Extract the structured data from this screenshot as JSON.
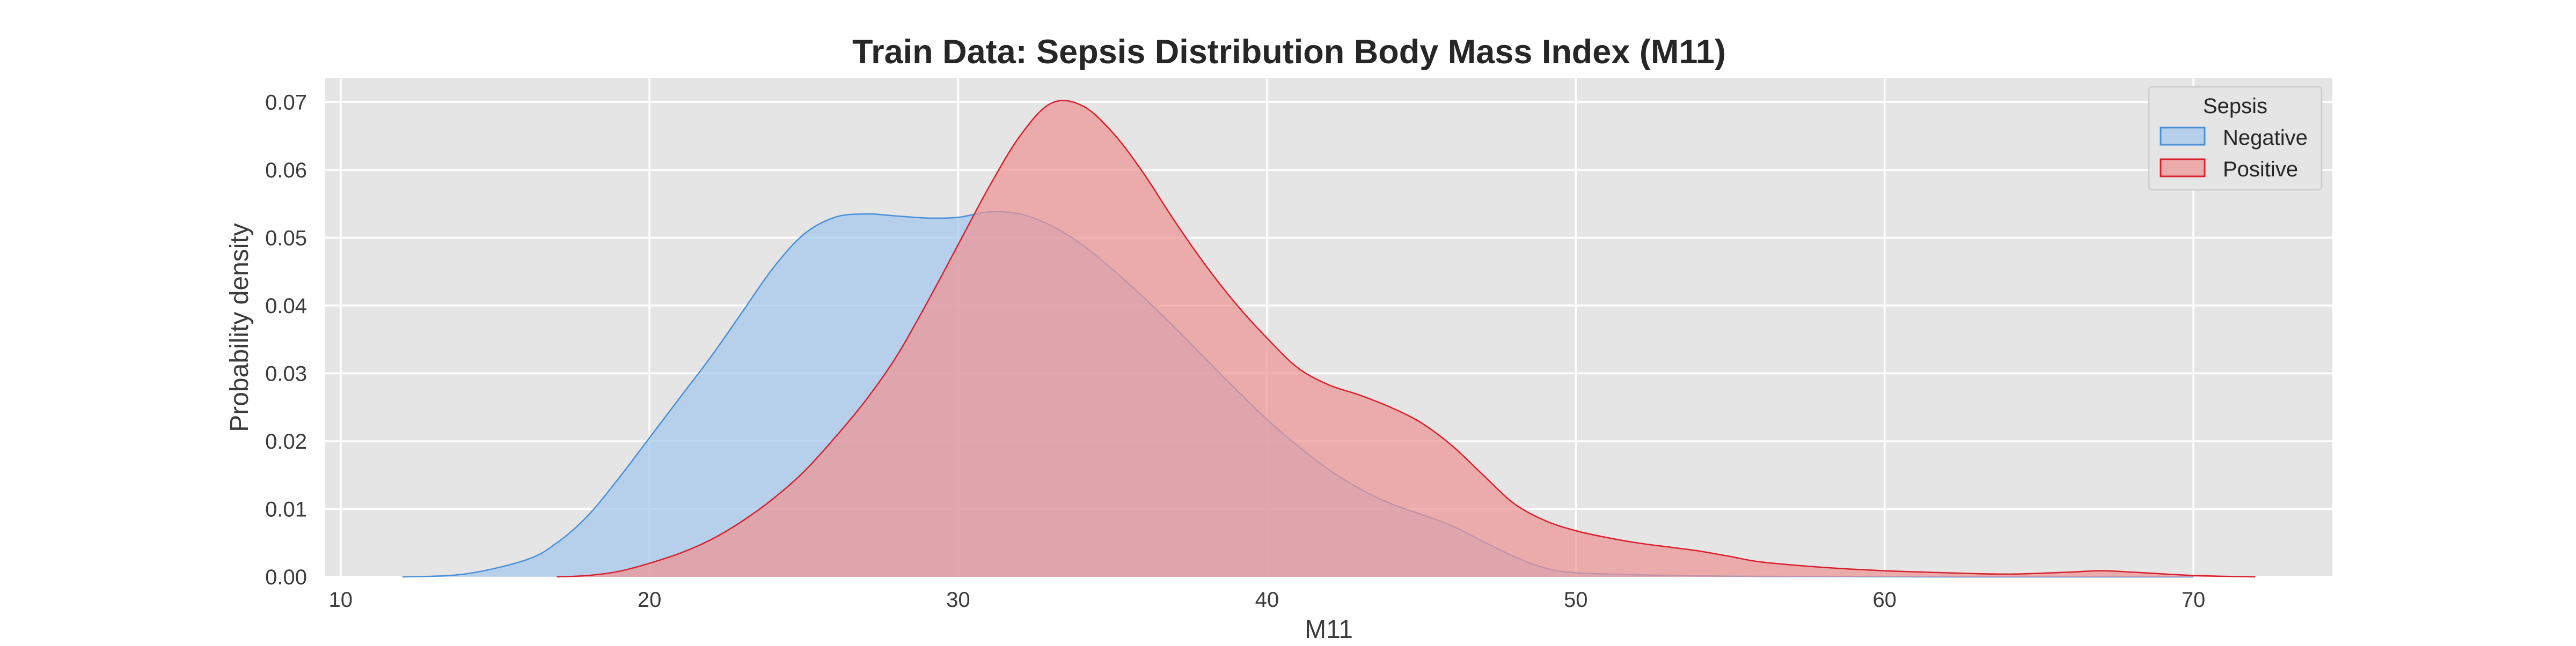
{
  "chart_data": {
    "type": "area",
    "title": "Train Data: Sepsis Distribution Body Mass Index (M11)",
    "xlabel": "M11",
    "ylabel": "Probability density",
    "xlim": [
      9.5,
      74.5
    ],
    "ylim": [
      0,
      0.0735
    ],
    "xticks": [
      10,
      20,
      30,
      40,
      50,
      60,
      70
    ],
    "yticks": [
      0.0,
      0.01,
      0.02,
      0.03,
      0.04,
      0.05,
      0.06,
      0.07
    ],
    "ytick_labels": [
      "0.00",
      "0.01",
      "0.02",
      "0.03",
      "0.04",
      "0.05",
      "0.06",
      "0.07"
    ],
    "grid": true,
    "legend": {
      "title": "Sepsis",
      "placement": "top-right"
    },
    "series": [
      {
        "name": "Negative",
        "color": "#4a90d9",
        "fill": "#a4c8ee",
        "x": [
          12,
          14,
          16,
          17,
          18,
          19,
          20,
          21,
          22,
          23,
          24,
          25,
          26,
          27,
          28,
          29,
          30,
          31,
          32,
          33,
          34,
          35,
          36,
          37,
          38,
          39,
          40,
          41,
          42,
          43,
          44,
          45,
          46,
          47,
          48,
          49,
          50,
          52,
          55,
          58,
          62,
          66,
          70
        ],
        "y": [
          0.0,
          0.0004,
          0.0025,
          0.005,
          0.009,
          0.0145,
          0.0205,
          0.0265,
          0.0325,
          0.039,
          0.0455,
          0.0505,
          0.053,
          0.0535,
          0.0532,
          0.0529,
          0.053,
          0.0538,
          0.0535,
          0.0518,
          0.049,
          0.0453,
          0.0412,
          0.0368,
          0.0322,
          0.0276,
          0.0232,
          0.0193,
          0.0158,
          0.013,
          0.0108,
          0.0092,
          0.0075,
          0.0052,
          0.003,
          0.0013,
          0.0006,
          0.0003,
          0.0001,
          5e-05,
          0.0,
          0.0,
          0.0
        ]
      },
      {
        "name": "Positive",
        "color": "#d9202c",
        "fill": "#ee9494",
        "x": [
          17,
          18,
          19,
          20,
          21,
          22,
          23,
          24,
          25,
          26,
          27,
          28,
          29,
          30,
          31,
          32,
          33,
          34,
          35,
          36,
          37,
          38,
          39,
          40,
          41,
          42,
          43,
          44,
          45,
          46,
          47,
          48,
          49,
          50,
          51,
          52,
          53,
          54,
          55,
          56,
          58,
          60,
          62,
          64,
          66,
          67,
          68,
          70,
          72
        ],
        "y": [
          0.0,
          0.0002,
          0.0008,
          0.002,
          0.0035,
          0.0055,
          0.0082,
          0.0115,
          0.0155,
          0.0205,
          0.026,
          0.0325,
          0.0405,
          0.049,
          0.0575,
          0.065,
          0.0698,
          0.0695,
          0.0655,
          0.0595,
          0.0525,
          0.046,
          0.0402,
          0.0352,
          0.0308,
          0.0283,
          0.0268,
          0.025,
          0.0227,
          0.0193,
          0.015,
          0.0108,
          0.0083,
          0.0068,
          0.0058,
          0.005,
          0.0044,
          0.0038,
          0.003,
          0.0022,
          0.0014,
          0.0009,
          0.0006,
          0.0004,
          0.0007,
          0.0009,
          0.0007,
          0.0002,
          0.0
        ]
      }
    ]
  }
}
